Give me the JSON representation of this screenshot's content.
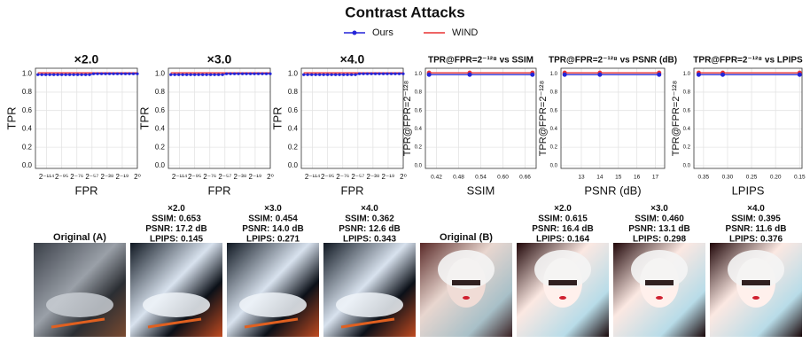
{
  "title": "Contrast Attacks",
  "chart_data": [
    {
      "type": "line",
      "title": "×2.0",
      "xlabel": "FPR",
      "ylabel": "TPR",
      "grid": true,
      "x": [
        -125,
        -120,
        -115,
        -110,
        -105,
        -100,
        -95,
        -90,
        -85,
        -80,
        -75,
        -70,
        -65,
        -60,
        -55,
        -50,
        -45,
        -40,
        -35,
        -30,
        -25,
        -20,
        -15,
        -10,
        -5,
        0
      ],
      "xlim": [
        -128,
        0
      ],
      "xticks": [
        {
          "value": -114,
          "label": "2⁻¹¹⁴"
        },
        {
          "value": -95,
          "label": "2⁻⁹⁵"
        },
        {
          "value": -76,
          "label": "2⁻⁷⁶"
        },
        {
          "value": -57,
          "label": "2⁻⁵⁷"
        },
        {
          "value": -38,
          "label": "2⁻³⁸"
        },
        {
          "value": -19,
          "label": "2⁻¹⁹"
        },
        {
          "value": 0,
          "label": "2⁰"
        }
      ],
      "ylim": [
        -0.03,
        1.06
      ],
      "yticks": [
        {
          "value": 0,
          "label": "0.0"
        },
        {
          "value": 0.2,
          "label": "0.2"
        },
        {
          "value": 0.4,
          "label": "0.4"
        },
        {
          "value": 0.6,
          "label": "0.6"
        },
        {
          "value": 0.8,
          "label": "0.8"
        },
        {
          "value": 1,
          "label": "1.0"
        }
      ],
      "series": [
        {
          "name": "Ours",
          "color": "#2424d8",
          "marker": "o",
          "values": [
            0.99,
            0.99,
            0.99,
            0.99,
            0.99,
            0.99,
            0.99,
            0.99,
            0.99,
            0.99,
            0.99,
            0.99,
            0.99,
            0.99,
            1,
            1,
            1,
            1,
            1,
            1,
            1,
            1,
            1,
            1,
            1,
            1
          ]
        },
        {
          "name": "WIND",
          "color": "#e83232",
          "values": [
            1.01,
            1.01,
            1.01,
            1.01,
            1.01,
            1.01,
            1.01,
            1.01,
            1.01,
            1.01,
            1.01,
            1.01,
            1.01,
            1.01,
            1.01,
            1.01,
            1.01,
            1.01,
            1.01,
            1.01,
            1.01,
            1.01,
            1.01,
            1.01,
            1.01,
            1.01
          ]
        }
      ]
    },
    {
      "type": "line",
      "title": "×3.0",
      "xlabel": "FPR",
      "ylabel": "TPR",
      "grid": true,
      "x": [
        -125,
        -120,
        -115,
        -110,
        -105,
        -100,
        -95,
        -90,
        -85,
        -80,
        -75,
        -70,
        -65,
        -60,
        -55,
        -50,
        -45,
        -40,
        -35,
        -30,
        -25,
        -20,
        -15,
        -10,
        -5,
        0
      ],
      "xlim": [
        -128,
        0
      ],
      "xticks": [
        {
          "value": -114,
          "label": "2⁻¹¹⁴"
        },
        {
          "value": -95,
          "label": "2⁻⁹⁵"
        },
        {
          "value": -76,
          "label": "2⁻⁷⁶"
        },
        {
          "value": -57,
          "label": "2⁻⁵⁷"
        },
        {
          "value": -38,
          "label": "2⁻³⁸"
        },
        {
          "value": -19,
          "label": "2⁻¹⁹"
        },
        {
          "value": 0,
          "label": "2⁰"
        }
      ],
      "ylim": [
        -0.03,
        1.06
      ],
      "yticks": [
        {
          "value": 0,
          "label": "0.0"
        },
        {
          "value": 0.2,
          "label": "0.2"
        },
        {
          "value": 0.4,
          "label": "0.4"
        },
        {
          "value": 0.6,
          "label": "0.6"
        },
        {
          "value": 0.8,
          "label": "0.8"
        },
        {
          "value": 1,
          "label": "1.0"
        }
      ],
      "series": [
        {
          "name": "Ours",
          "color": "#2424d8",
          "marker": "o",
          "values": [
            0.99,
            0.99,
            0.99,
            0.99,
            0.99,
            0.99,
            0.99,
            0.99,
            0.99,
            0.99,
            0.99,
            0.99,
            0.99,
            0.99,
            1,
            1,
            1,
            1,
            1,
            1,
            1,
            1,
            1,
            1,
            1,
            1
          ]
        },
        {
          "name": "WIND",
          "color": "#e83232",
          "values": [
            1.01,
            1.01,
            1.01,
            1.01,
            1.01,
            1.01,
            1.01,
            1.01,
            1.01,
            1.01,
            1.01,
            1.01,
            1.01,
            1.01,
            1.01,
            1.01,
            1.01,
            1.01,
            1.01,
            1.01,
            1.01,
            1.01,
            1.01,
            1.01,
            1.01,
            1.01
          ]
        }
      ]
    },
    {
      "type": "line",
      "title": "×4.0",
      "xlabel": "FPR",
      "ylabel": "TPR",
      "grid": true,
      "x": [
        -125,
        -120,
        -115,
        -110,
        -105,
        -100,
        -95,
        -90,
        -85,
        -80,
        -75,
        -70,
        -65,
        -60,
        -55,
        -50,
        -45,
        -40,
        -35,
        -30,
        -25,
        -20,
        -15,
        -10,
        -5,
        0
      ],
      "xlim": [
        -128,
        0
      ],
      "xticks": [
        {
          "value": -114,
          "label": "2⁻¹¹⁴"
        },
        {
          "value": -95,
          "label": "2⁻⁹⁵"
        },
        {
          "value": -76,
          "label": "2⁻⁷⁶"
        },
        {
          "value": -57,
          "label": "2⁻⁵⁷"
        },
        {
          "value": -38,
          "label": "2⁻³⁸"
        },
        {
          "value": -19,
          "label": "2⁻¹⁹"
        },
        {
          "value": 0,
          "label": "2⁰"
        }
      ],
      "ylim": [
        -0.03,
        1.06
      ],
      "yticks": [
        {
          "value": 0,
          "label": "0.0"
        },
        {
          "value": 0.2,
          "label": "0.2"
        },
        {
          "value": 0.4,
          "label": "0.4"
        },
        {
          "value": 0.6,
          "label": "0.6"
        },
        {
          "value": 0.8,
          "label": "0.8"
        },
        {
          "value": 1,
          "label": "1.0"
        }
      ],
      "series": [
        {
          "name": "Ours",
          "color": "#2424d8",
          "marker": "o",
          "values": [
            0.99,
            0.99,
            0.99,
            0.99,
            0.99,
            0.99,
            0.99,
            0.99,
            0.99,
            0.99,
            0.99,
            0.99,
            0.99,
            0.99,
            1,
            1,
            1,
            1,
            1,
            1,
            1,
            1,
            1,
            1,
            1,
            1
          ]
        },
        {
          "name": "WIND",
          "color": "#e83232",
          "values": [
            1.01,
            1.01,
            1.01,
            1.01,
            1.01,
            1.01,
            1.01,
            1.01,
            1.01,
            1.01,
            1.01,
            1.01,
            1.01,
            1.01,
            1.01,
            1.01,
            1.01,
            1.01,
            1.01,
            1.01,
            1.01,
            1.01,
            1.01,
            1.01,
            1.01,
            1.01
          ]
        }
      ]
    },
    {
      "type": "line",
      "title": "TPR@FPR=2⁻¹²⁸ vs SSIM",
      "xlabel": "SSIM",
      "ylabel": "TPR@FPR=2⁻¹²⁸",
      "grid": true,
      "x": [
        0.68,
        0.51,
        0.4
      ],
      "xlim": [
        0.39,
        0.69
      ],
      "xticks": [
        0.42,
        0.48,
        0.54,
        {
          "value": 0.6,
          "label": "0.60"
        },
        0.66
      ],
      "ylim": [
        -0.03,
        1.06
      ],
      "yticks": [
        {
          "value": 0,
          "label": "0.0"
        },
        {
          "value": 0.2,
          "label": "0.2"
        },
        {
          "value": 0.4,
          "label": "0.4"
        },
        {
          "value": 0.6,
          "label": "0.6"
        },
        {
          "value": 0.8,
          "label": "0.8"
        },
        {
          "value": 1,
          "label": "1.0"
        }
      ],
      "series": [
        {
          "name": "Ours",
          "color": "#2424d8",
          "marker": "o",
          "values": [
            0.99,
            0.99,
            0.99
          ]
        },
        {
          "name": "WIND",
          "color": "#e83232",
          "marker": "o",
          "values": [
            1.01,
            1.01,
            1.01
          ]
        }
      ]
    },
    {
      "type": "line",
      "title": "TPR@FPR=2⁻¹²⁸ vs PSNR (dB)",
      "xlabel": "PSNR (dB)",
      "ylabel": "TPR@FPR=2⁻¹²⁸",
      "grid": true,
      "x": [
        17.2,
        14.0,
        12.1
      ],
      "xlim": [
        11.9,
        17.5
      ],
      "xticks": [
        13,
        14,
        15,
        16,
        17
      ],
      "ylim": [
        -0.03,
        1.06
      ],
      "yticks": [
        {
          "value": 0,
          "label": "0.0"
        },
        {
          "value": 0.2,
          "label": "0.2"
        },
        {
          "value": 0.4,
          "label": "0.4"
        },
        {
          "value": 0.6,
          "label": "0.6"
        },
        {
          "value": 0.8,
          "label": "0.8"
        },
        {
          "value": 1,
          "label": "1.0"
        }
      ],
      "series": [
        {
          "name": "Ours",
          "color": "#2424d8",
          "marker": "o",
          "values": [
            0.99,
            0.99,
            0.99
          ]
        },
        {
          "name": "WIND",
          "color": "#e83232",
          "marker": "o",
          "values": [
            1.01,
            1.01,
            1.01
          ]
        }
      ]
    },
    {
      "type": "line",
      "title": "TPR@FPR=2⁻¹²⁸ vs LPIPS",
      "xlabel": "LPIPS",
      "ylabel": "TPR@FPR=2⁻¹²⁸",
      "grid": true,
      "x": [
        0.15,
        0.31,
        0.36
      ],
      "xlim": [
        0.37,
        0.145
      ],
      "xticks": [
        0.35,
        {
          "value": 0.3,
          "label": "0.30"
        },
        0.25,
        {
          "value": 0.2,
          "label": "0.20"
        },
        0.15
      ],
      "ylim": [
        -0.03,
        1.06
      ],
      "yticks": [
        {
          "value": 0,
          "label": "0.0"
        },
        {
          "value": 0.2,
          "label": "0.2"
        },
        {
          "value": 0.4,
          "label": "0.4"
        },
        {
          "value": 0.6,
          "label": "0.6"
        },
        {
          "value": 0.8,
          "label": "0.8"
        },
        {
          "value": 1,
          "label": "1.0"
        }
      ],
      "series": [
        {
          "name": "Ours",
          "color": "#2424d8",
          "marker": "o",
          "values": [
            0.99,
            0.99,
            0.99
          ]
        },
        {
          "name": "WIND",
          "color": "#e83232",
          "marker": "o",
          "values": [
            1.01,
            1.01,
            1.01
          ]
        }
      ]
    }
  ],
  "images": [
    {
      "caption": [
        "Original (A)"
      ]
    },
    {
      "caption": [
        "×2.0",
        "SSIM: 0.653",
        "PSNR: 17.2 dB",
        "LPIPS: 0.145"
      ]
    },
    {
      "caption": [
        "×3.0",
        "SSIM: 0.454",
        "PSNR: 14.0 dB",
        "LPIPS: 0.271"
      ]
    },
    {
      "caption": [
        "×4.0",
        "SSIM: 0.362",
        "PSNR: 12.6 dB",
        "LPIPS: 0.343"
      ]
    },
    {
      "caption": [
        "Original (B)"
      ]
    },
    {
      "caption": [
        "×2.0",
        "SSIM: 0.615",
        "PSNR: 16.4 dB",
        "LPIPS: 0.164"
      ]
    },
    {
      "caption": [
        "×3.0",
        "SSIM: 0.460",
        "PSNR: 13.1 dB",
        "LPIPS: 0.298"
      ]
    },
    {
      "caption": [
        "×4.0",
        "SSIM: 0.395",
        "PSNR: 11.6 dB",
        "LPIPS: 0.376"
      ]
    }
  ]
}
